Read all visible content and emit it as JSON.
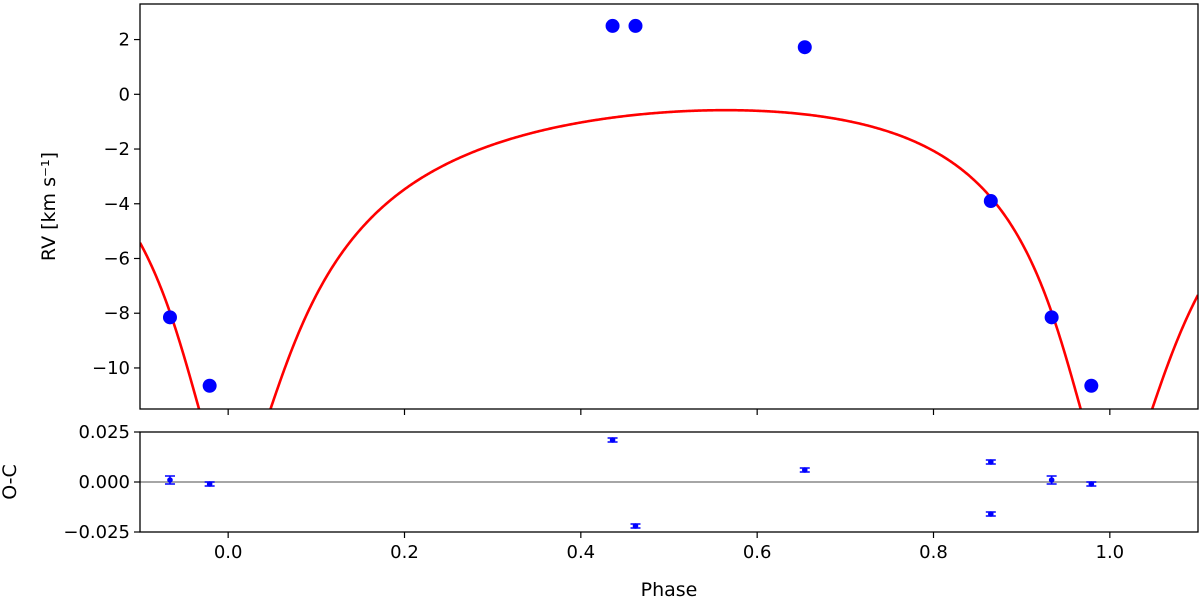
{
  "chart_data": [
    {
      "type": "scatter",
      "panel": "rv",
      "title": "",
      "xlabel": "",
      "ylabel": "RV [km s⁻¹]",
      "xlim": [
        -0.1,
        1.1
      ],
      "ylim": [
        -11.5,
        3.3
      ],
      "yticks": [
        2,
        0,
        -2,
        -4,
        -6,
        -8,
        -10
      ],
      "ytick_labels": [
        "2",
        "0",
        "−2",
        "−4",
        "−6",
        "−8",
        "−10"
      ],
      "xticks": [
        0.0,
        0.2,
        0.4,
        0.6,
        0.8,
        1.0
      ],
      "grid": false,
      "model_curve": {
        "color": "#ff0000",
        "eccentricity": 0.55,
        "omega_rad": 3.0,
        "semi_amplitude_K": 6.85,
        "gamma": -3.7,
        "periastron_phase": 0.0
      },
      "points": {
        "color": "#0000ff",
        "x": [
          -0.066,
          -0.021,
          0.436,
          0.462,
          0.654,
          0.865,
          0.934,
          0.979
        ],
        "y": [
          -8.15,
          -10.65,
          2.5,
          2.5,
          1.72,
          -3.9,
          -8.15,
          -10.65
        ]
      }
    },
    {
      "type": "scatter",
      "panel": "residuals",
      "title": "",
      "xlabel": "Phase",
      "ylabel": "O-C",
      "xlim": [
        -0.1,
        1.1
      ],
      "ylim": [
        -0.025,
        0.025
      ],
      "yticks": [
        0.025,
        0.0,
        -0.025
      ],
      "ytick_labels": [
        "0.025",
        "0.000",
        "−0.025"
      ],
      "xticks": [
        0.0,
        0.2,
        0.4,
        0.6,
        0.8,
        1.0
      ],
      "xtick_labels": [
        "0.0",
        "0.2",
        "0.4",
        "0.6",
        "0.8",
        "1.0"
      ],
      "zero_line_color": "#888888",
      "points": {
        "color": "#0000ff",
        "x": [
          -0.066,
          -0.021,
          0.436,
          0.462,
          0.654,
          0.865,
          0.865,
          0.934,
          0.979
        ],
        "y": [
          0.001,
          -0.001,
          0.021,
          -0.022,
          0.006,
          0.01,
          -0.016,
          0.001,
          -0.001
        ],
        "yerr": [
          0.002,
          0.001,
          0.001,
          0.001,
          0.001,
          0.001,
          0.001,
          0.002,
          0.001
        ]
      }
    }
  ]
}
